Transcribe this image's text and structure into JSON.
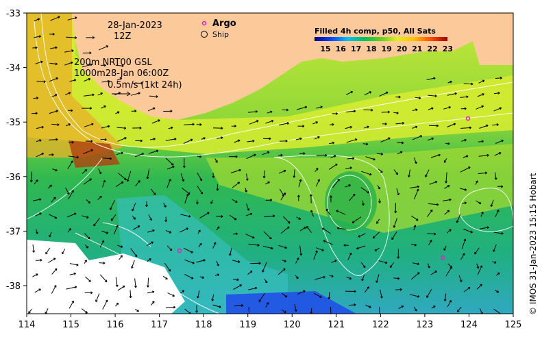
{
  "map": {
    "date_label": "28-Jan-2023",
    "time_label": "12Z",
    "contour_line1": "200m  NRT00 GSL",
    "contour_line2": "1000m28-Jan 06:00Z",
    "velocity_scale": "0.5m/s (1kt 24h)",
    "legend": {
      "argo": "Argo",
      "ship": "Ship"
    },
    "colorbar": {
      "title": "Filled 4h comp, p50, All Sats",
      "ticks": [
        "15",
        "16",
        "17",
        "18",
        "19",
        "20",
        "21",
        "22",
        "23"
      ]
    },
    "credit": "© IMOS 31-Jan-2023 15:15 Hobart",
    "x_ticks": [
      "114",
      "115",
      "116",
      "117",
      "118",
      "119",
      "120",
      "121",
      "122",
      "123",
      "124",
      "125"
    ],
    "y_ticks": [
      "-33",
      "-34",
      "-35",
      "-36",
      "-37",
      "-38"
    ],
    "colors": {
      "land": "#fcc99a",
      "warm": "#e8a020",
      "mid": "#b4e030",
      "cool": "#2cb860",
      "cold": "#40c0d8",
      "argo": "#e020c0"
    }
  }
}
